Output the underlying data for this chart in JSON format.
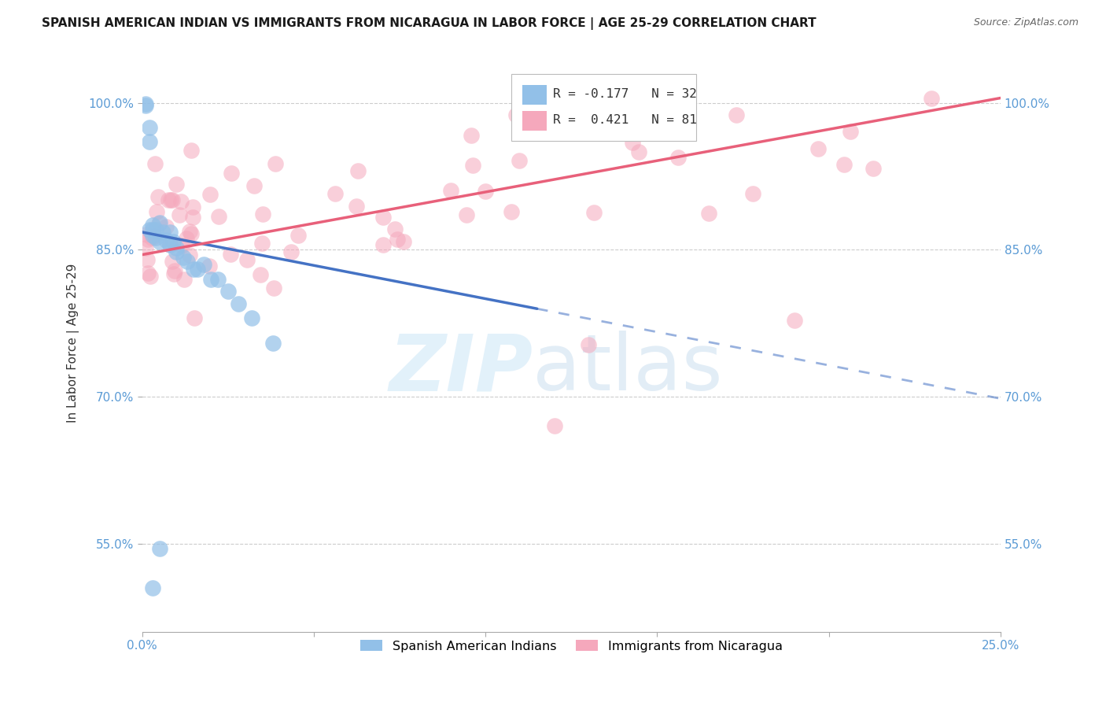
{
  "title": "SPANISH AMERICAN INDIAN VS IMMIGRANTS FROM NICARAGUA IN LABOR FORCE | AGE 25-29 CORRELATION CHART",
  "source": "Source: ZipAtlas.com",
  "ylabel": "In Labor Force | Age 25-29",
  "xlim": [
    0.0,
    0.25
  ],
  "ylim": [
    0.46,
    1.05
  ],
  "xtick_positions": [
    0.0,
    0.05,
    0.1,
    0.15,
    0.2,
    0.25
  ],
  "xtick_labels": [
    "0.0%",
    "",
    "",
    "",
    "",
    "25.0%"
  ],
  "ytick_positions": [
    0.55,
    0.7,
    0.85,
    1.0
  ],
  "ytick_labels": [
    "55.0%",
    "70.0%",
    "85.0%",
    "100.0%"
  ],
  "legend_R1": "-0.177",
  "legend_N1": "32",
  "legend_R2": "0.421",
  "legend_N2": "81",
  "blue_color": "#92C0E8",
  "pink_color": "#F5A8BC",
  "blue_line_color": "#4472C4",
  "pink_line_color": "#E8607A",
  "blue_line_y0": 0.868,
  "blue_line_y1": 0.698,
  "pink_line_y0": 0.845,
  "pink_line_y1": 1.005,
  "background_color": "#FFFFFF",
  "grid_color": "#CCCCCC",
  "title_fontsize": 11,
  "axis_label_fontsize": 11,
  "tick_fontsize": 11,
  "watermark_zip_color": "#C8DCF0",
  "watermark_atlas_color": "#B8CDE0"
}
